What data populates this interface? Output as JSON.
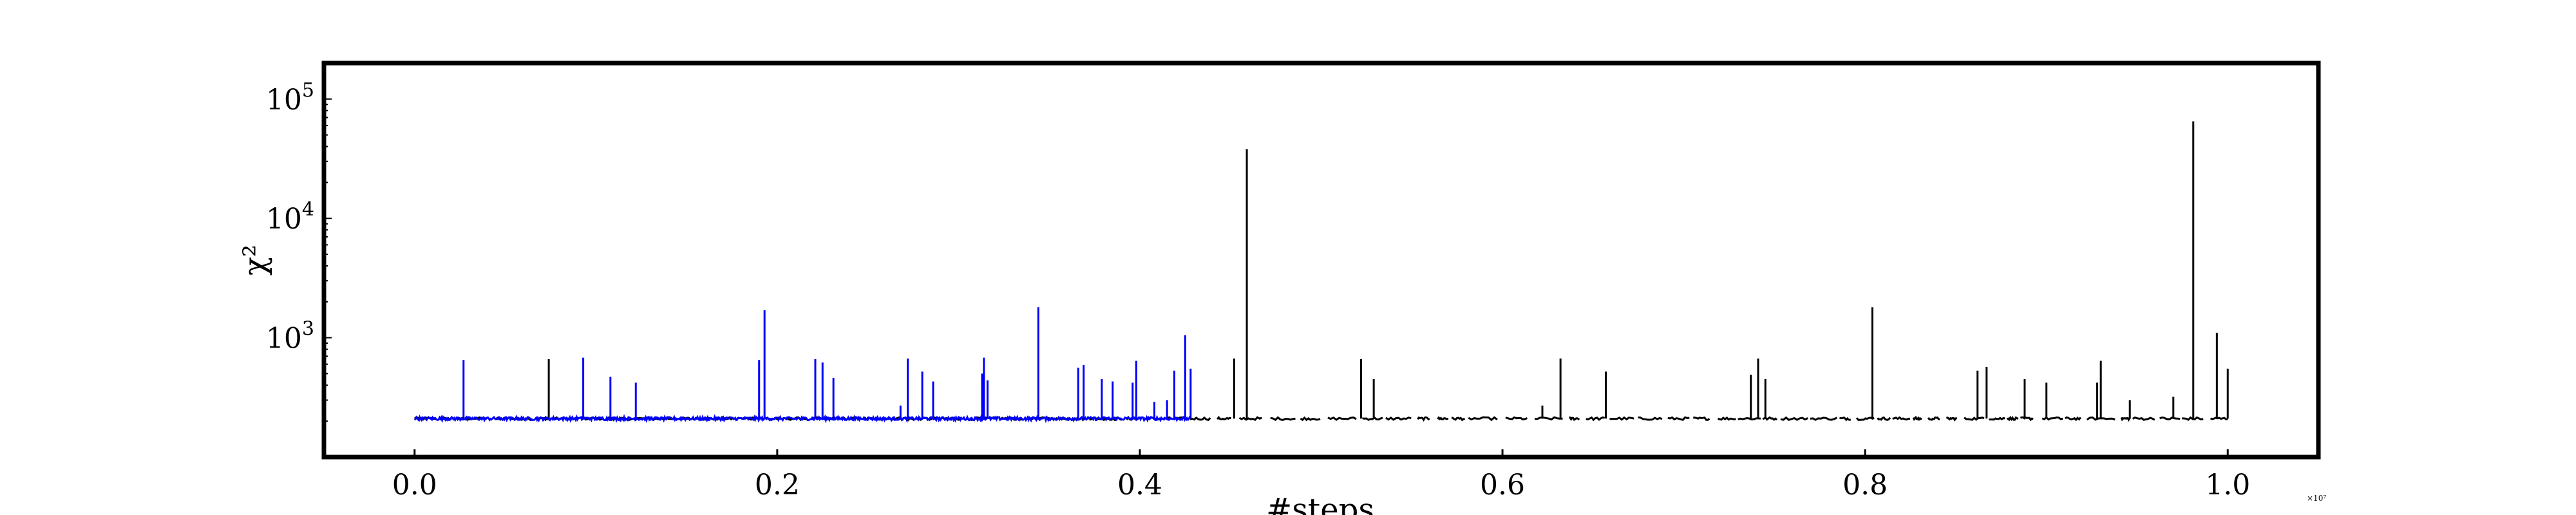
{
  "chart_data": {
    "type": "line",
    "title": "",
    "xlabel": "#steps",
    "ylabel": "χ²",
    "y_scale": "log",
    "xlim": [
      -0.05,
      1.05
    ],
    "ylim": [
      100,
      200000
    ],
    "x_offset_label": "×10⁷",
    "grid": false,
    "legend": "none",
    "x_ticks": [
      {
        "value": 0.0,
        "label": "0.0"
      },
      {
        "value": 0.2,
        "label": "0.2"
      },
      {
        "value": 0.4,
        "label": "0.4"
      },
      {
        "value": 0.6,
        "label": "0.6"
      },
      {
        "value": 0.8,
        "label": "0.8"
      },
      {
        "value": 1.0,
        "label": "1.0"
      }
    ],
    "y_ticks": [
      {
        "value": 1000,
        "base": "10",
        "exp": "3"
      },
      {
        "value": 10000,
        "base": "10",
        "exp": "4"
      },
      {
        "value": 100000,
        "base": "10",
        "exp": "5"
      }
    ],
    "baseline": 210,
    "series": [
      {
        "color": "#0000ff",
        "x_range": [
          0.0,
          0.428
        ],
        "baseline": 210,
        "segments": "continuous",
        "spikes": [
          [
            0.027,
            650
          ],
          [
            0.093,
            680
          ],
          [
            0.108,
            470
          ],
          [
            0.122,
            420
          ],
          [
            0.19,
            650
          ],
          [
            0.193,
            1700
          ],
          [
            0.221,
            660
          ],
          [
            0.225,
            620
          ],
          [
            0.231,
            460
          ],
          [
            0.268,
            270
          ],
          [
            0.272,
            670
          ],
          [
            0.28,
            520
          ],
          [
            0.286,
            430
          ],
          [
            0.313,
            500
          ],
          [
            0.314,
            680
          ],
          [
            0.316,
            440
          ],
          [
            0.344,
            1800
          ],
          [
            0.366,
            560
          ],
          [
            0.369,
            590
          ],
          [
            0.379,
            450
          ],
          [
            0.385,
            430
          ],
          [
            0.396,
            420
          ],
          [
            0.398,
            640
          ],
          [
            0.408,
            290
          ],
          [
            0.415,
            300
          ],
          [
            0.419,
            530
          ],
          [
            0.425,
            1050
          ],
          [
            0.428,
            550
          ]
        ]
      },
      {
        "color": "#000000",
        "x_range": [
          0.0,
          1.0
        ],
        "baseline": 210,
        "segments": "dashed",
        "spikes": [
          [
            0.074,
            660
          ],
          [
            0.452,
            670
          ],
          [
            0.459,
            38000
          ],
          [
            0.522,
            660
          ],
          [
            0.529,
            450
          ],
          [
            0.622,
            270
          ],
          [
            0.632,
            670
          ],
          [
            0.657,
            520
          ],
          [
            0.737,
            490
          ],
          [
            0.741,
            670
          ],
          [
            0.745,
            450
          ],
          [
            0.804,
            1800
          ],
          [
            0.862,
            530
          ],
          [
            0.867,
            570
          ],
          [
            0.888,
            450
          ],
          [
            0.9,
            420
          ],
          [
            0.928,
            420
          ],
          [
            0.93,
            640
          ],
          [
            0.946,
            300
          ],
          [
            0.97,
            320
          ],
          [
            0.981,
            65000
          ],
          [
            0.994,
            1100
          ],
          [
            1.0,
            550
          ]
        ]
      }
    ]
  }
}
